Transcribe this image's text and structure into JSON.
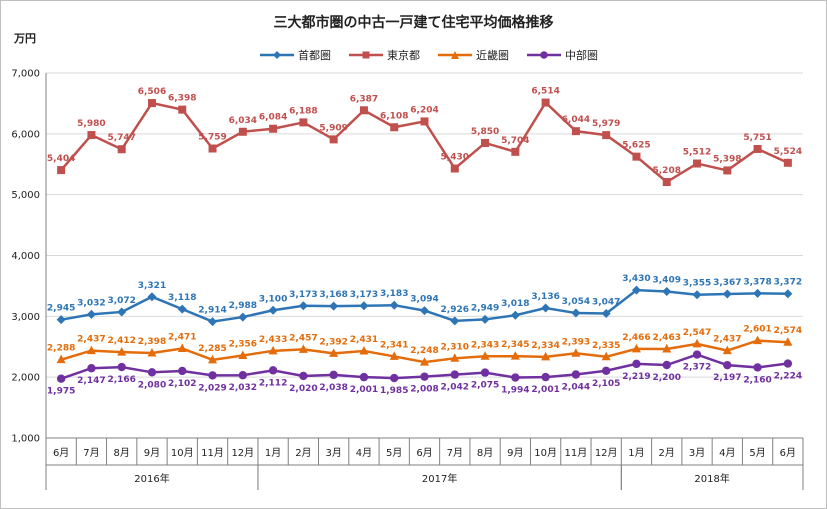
{
  "chart_data": {
    "type": "line",
    "title": "三大都市圏の中古一戸建て住宅平均価格推移",
    "ylabel": "万円",
    "ylim": [
      1000,
      7000
    ],
    "yticks": [
      "1,000",
      "2,000",
      "3,000",
      "4,000",
      "5,000",
      "6,000",
      "7,000"
    ],
    "ytick_values": [
      1000,
      2000,
      3000,
      4000,
      5000,
      6000,
      7000
    ],
    "categories": [
      "6月",
      "7月",
      "8月",
      "9月",
      "10月",
      "11月",
      "12月",
      "1月",
      "2月",
      "3月",
      "4月",
      "5月",
      "6月",
      "7月",
      "8月",
      "9月",
      "10月",
      "11月",
      "12月",
      "1月",
      "2月",
      "3月",
      "4月",
      "5月",
      "6月"
    ],
    "years": [
      {
        "label": "2016年",
        "start": 0,
        "end": 6
      },
      {
        "label": "2017年",
        "start": 7,
        "end": 18
      },
      {
        "label": "2018年",
        "start": 19,
        "end": 24
      }
    ],
    "series": [
      {
        "name": "首都圏",
        "color": "#2e75b6",
        "marker": "diamond",
        "label_pos": "above",
        "values": [
          2945,
          3032,
          3072,
          3321,
          3118,
          2914,
          2988,
          3100,
          3173,
          3168,
          3173,
          3183,
          3094,
          2926,
          2949,
          3018,
          3136,
          3054,
          3047,
          3430,
          3409,
          3355,
          3367,
          3378,
          3372
        ],
        "labels": [
          "2,945",
          "3,032",
          "3,072",
          "3,321",
          "3,118",
          "2,914",
          "2,988",
          "3,100",
          "3,173",
          "3,168",
          "3,173",
          "3,183",
          "3,094",
          "2,926",
          "2,949",
          "3,018",
          "3,136",
          "3,054",
          "3,047",
          "3,430",
          "3,409",
          "3,355",
          "3,367",
          "3,378",
          "3,372"
        ]
      },
      {
        "name": "東京都",
        "color": "#c0504d",
        "marker": "square",
        "label_pos": "above",
        "values": [
          5404,
          5980,
          5747,
          6506,
          6398,
          5759,
          6034,
          6084,
          6188,
          5909,
          6387,
          6108,
          6204,
          5430,
          5850,
          5704,
          6514,
          6044,
          5979,
          5625,
          5208,
          5512,
          5398,
          5751,
          5524
        ],
        "labels": [
          "5,404",
          "5,980",
          "5,747",
          "6,506",
          "6,398",
          "5,759",
          "6,034",
          "6,084",
          "6,188",
          "5,909",
          "6,387",
          "6,108",
          "6,204",
          "5,430",
          "5,850",
          "5,704",
          "6,514",
          "6,044",
          "5,979",
          "5,625",
          "5,208",
          "5,512",
          "5,398",
          "5,751",
          "5,524"
        ]
      },
      {
        "name": "近畿圏",
        "color": "#e46c0a",
        "marker": "triangle",
        "label_pos": "above",
        "values": [
          2288,
          2437,
          2412,
          2398,
          2471,
          2285,
          2356,
          2433,
          2457,
          2392,
          2431,
          2341,
          2248,
          2310,
          2343,
          2345,
          2334,
          2393,
          2335,
          2466,
          2463,
          2547,
          2437,
          2601,
          2574
        ],
        "labels": [
          "2,288",
          "2,437",
          "2,412",
          "2,398",
          "2,471",
          "2,285",
          "2,356",
          "2,433",
          "2,457",
          "2,392",
          "2,431",
          "2,341",
          "2,248",
          "2,310",
          "2,343",
          "2,345",
          "2,334",
          "2,393",
          "2,335",
          "2,466",
          "2,463",
          "2,547",
          "2,437",
          "2,601",
          "2,574"
        ]
      },
      {
        "name": "中部圏",
        "color": "#7030a0",
        "marker": "circle",
        "label_pos": "below",
        "values": [
          1975,
          2147,
          2166,
          2080,
          2102,
          2029,
          2032,
          2112,
          2020,
          2038,
          2001,
          1985,
          2008,
          2042,
          2075,
          1994,
          2001,
          2044,
          2105,
          2219,
          2200,
          2372,
          2197,
          2160,
          2224
        ],
        "labels": [
          "1,975",
          "2,147",
          "2,166",
          "2,080",
          "2,102",
          "2,029",
          "2,032",
          "2,112",
          "2,020",
          "2,038",
          "2,001",
          "1,985",
          "2,008",
          "2,042",
          "2,075",
          "1,994",
          "2,001",
          "2,044",
          "2,105",
          "2,219",
          "2,200",
          "2,372",
          "2,197",
          "2,160",
          "2,224"
        ]
      }
    ]
  }
}
